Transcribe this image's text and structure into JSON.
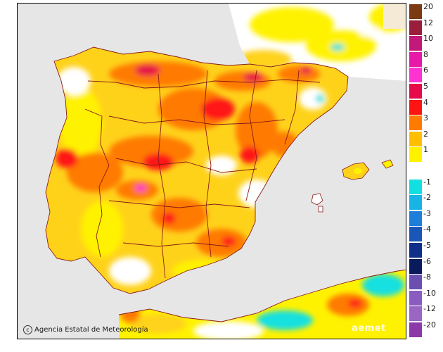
{
  "map": {
    "credit": "Agencia Estatal de Meteorología",
    "logo": "aemet"
  },
  "legend": {
    "items": [
      {
        "label": "20",
        "color": "#7a3a12"
      },
      {
        "label": "12",
        "color": "#9b1d3c"
      },
      {
        "label": "10",
        "color": "#c2187a"
      },
      {
        "label": "8",
        "color": "#e61aa8"
      },
      {
        "label": "6",
        "color": "#ff33d1"
      },
      {
        "label": "5",
        "color": "#e60a4a"
      },
      {
        "label": "4",
        "color": "#ff1414"
      },
      {
        "label": "3",
        "color": "#ff7a00"
      },
      {
        "label": "2",
        "color": "#ffbf00"
      },
      {
        "label": "1",
        "color": "#fff200"
      },
      {
        "label": "",
        "color": "#ffffff"
      },
      {
        "label": "-1",
        "color": "#12e0e0"
      },
      {
        "label": "-2",
        "color": "#19b3e6"
      },
      {
        "label": "-3",
        "color": "#1e7fd9"
      },
      {
        "label": "-4",
        "color": "#1a56b8"
      },
      {
        "label": "-5",
        "color": "#0f2f8a"
      },
      {
        "label": "-6",
        "color": "#0b1a5c"
      },
      {
        "label": "-8",
        "color": "#6b4fb0"
      },
      {
        "label": "-10",
        "color": "#8a5cc0"
      },
      {
        "label": "-12",
        "color": "#9a66c4"
      },
      {
        "label": "-20",
        "color": "#8b3aa8"
      }
    ]
  },
  "colors": {
    "sea": "#e6e6e6",
    "land_base": "#ffd21a",
    "border": "#8b1a1a"
  }
}
